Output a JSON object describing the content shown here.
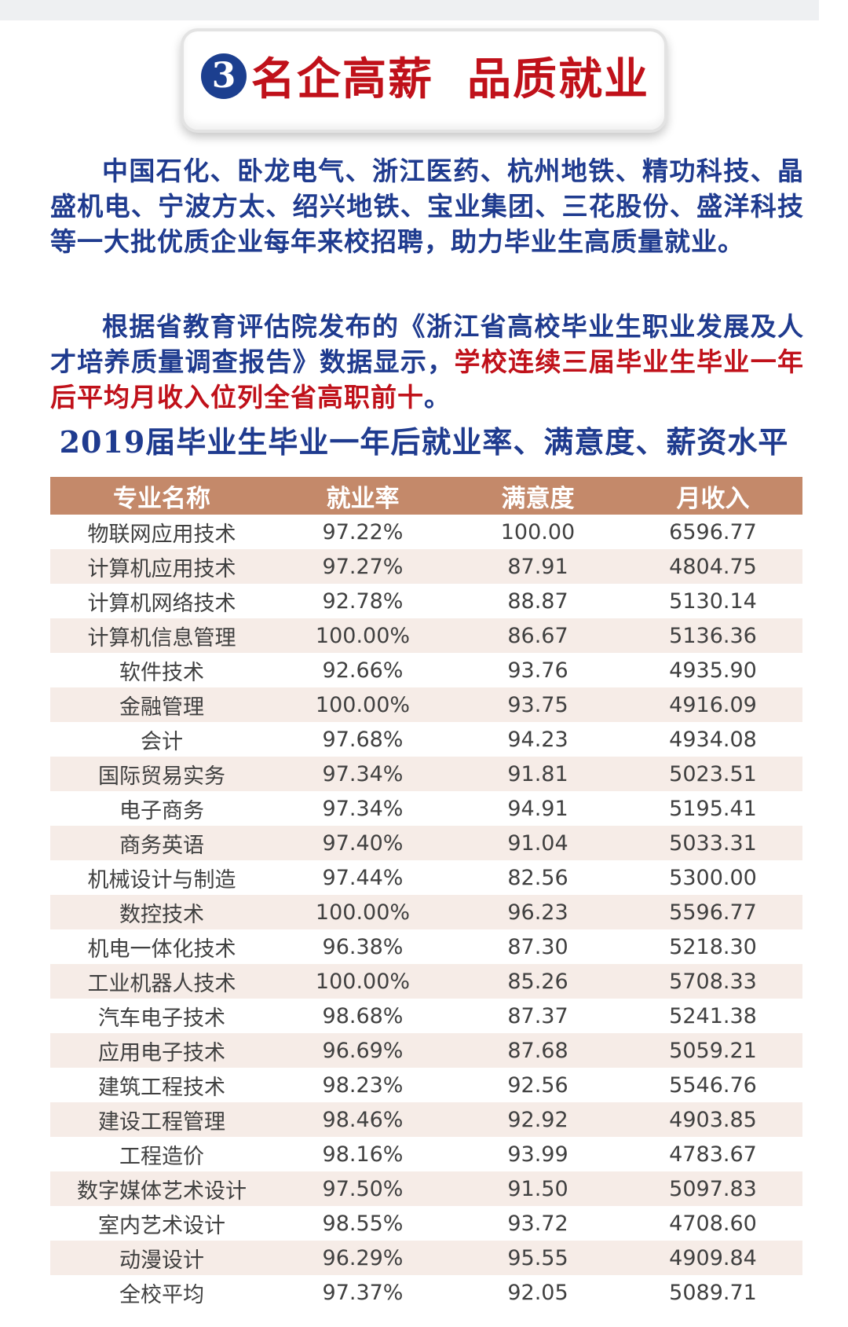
{
  "banner": {
    "number": "3",
    "title": "名企高薪  品质就业"
  },
  "paragraphs": {
    "p1": "中国石化、卧龙电气、浙江医药、杭州地铁、精功科技、晶盛机电、宁波方太、绍兴地铁、宝业集团、三花股份、盛洋科技等一大批优质企业每年来校招聘，助力毕业生高质量就业。",
    "p2_normal": "根据省教育评估院发布的《浙江省高校毕业生职业发展及人才培养质量调查报告》数据显示，",
    "p2_highlight": "学校连续三届毕业生毕业一年后平均月收入位列全省高职前十",
    "p2_end": "。"
  },
  "table": {
    "title": "2019届毕业生毕业一年后就业率、满意度、薪资水平",
    "headers": [
      "专业名称",
      "就业率",
      "满意度",
      "月收入"
    ],
    "rows": [
      [
        "物联网应用技术",
        "97.22%",
        "100.00",
        "6596.77"
      ],
      [
        "计算机应用技术",
        "97.27%",
        "87.91",
        "4804.75"
      ],
      [
        "计算机网络技术",
        "92.78%",
        "88.87",
        "5130.14"
      ],
      [
        "计算机信息管理",
        "100.00%",
        "86.67",
        "5136.36"
      ],
      [
        "软件技术",
        "92.66%",
        "93.76",
        "4935.90"
      ],
      [
        "金融管理",
        "100.00%",
        "93.75",
        "4916.09"
      ],
      [
        "会计",
        "97.68%",
        "94.23",
        "4934.08"
      ],
      [
        "国际贸易实务",
        "97.34%",
        "91.81",
        "5023.51"
      ],
      [
        "电子商务",
        "97.34%",
        "94.91",
        "5195.41"
      ],
      [
        "商务英语",
        "97.40%",
        "91.04",
        "5033.31"
      ],
      [
        "机械设计与制造",
        "97.44%",
        "82.56",
        "5300.00"
      ],
      [
        "数控技术",
        "100.00%",
        "96.23",
        "5596.77"
      ],
      [
        "机电一体化技术",
        "96.38%",
        "87.30",
        "5218.30"
      ],
      [
        "工业机器人技术",
        "100.00%",
        "85.26",
        "5708.33"
      ],
      [
        "汽车电子技术",
        "98.68%",
        "87.37",
        "5241.38"
      ],
      [
        "应用电子技术",
        "96.69%",
        "87.68",
        "5059.21"
      ],
      [
        "建筑工程技术",
        "98.23%",
        "92.56",
        "5546.76"
      ],
      [
        "建设工程管理",
        "98.46%",
        "92.92",
        "4903.85"
      ],
      [
        "工程造价",
        "98.16%",
        "93.99",
        "4783.67"
      ],
      [
        "数字媒体艺术设计",
        "97.50%",
        "91.50",
        "5097.83"
      ],
      [
        "室内艺术设计",
        "98.55%",
        "93.72",
        "4708.60"
      ],
      [
        "动漫设计",
        "96.29%",
        "95.55",
        "4909.84"
      ],
      [
        "全校平均",
        "97.37%",
        "92.05",
        "5089.71"
      ]
    ]
  },
  "colors": {
    "title_blue": "#1f3b8f",
    "highlight_red": "#c0111a",
    "header_bg": "#c4896a",
    "stripe_bg": "#f6ece7"
  }
}
